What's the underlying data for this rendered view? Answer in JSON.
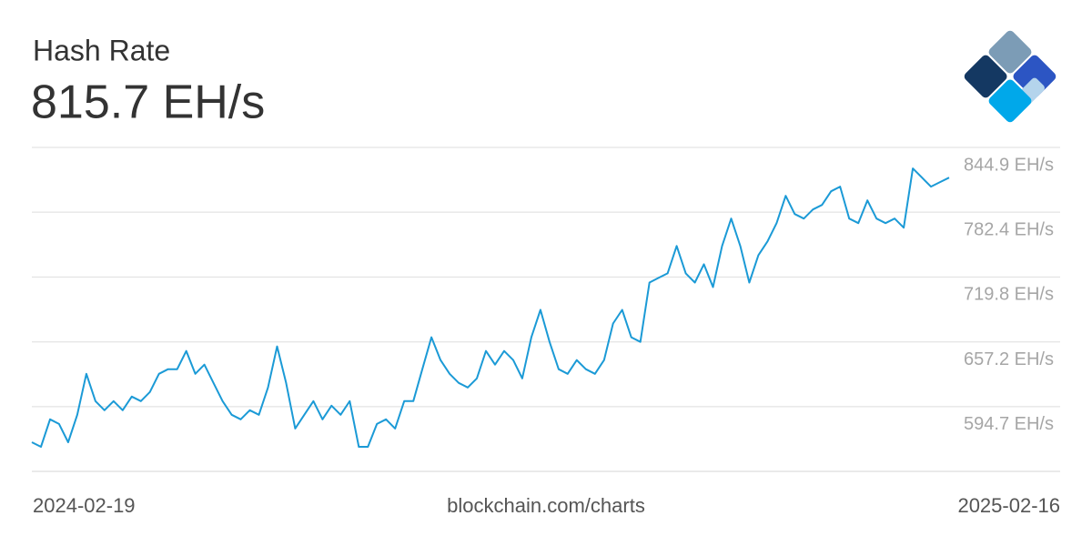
{
  "chart_data": {
    "type": "line",
    "title": "Hash Rate",
    "subtitle": "815.7 EH/s",
    "x_labels": [
      "2024-02-19",
      "2025-02-16"
    ],
    "source": "blockchain.com/charts",
    "color": "#1b9ad6",
    "grid": true,
    "ylim": [
      532.2,
      844.9
    ],
    "yticks": [
      {
        "value": 594.7,
        "label": "594.7 EH/s"
      },
      {
        "value": 657.2,
        "label": "657.2 EH/s"
      },
      {
        "value": 719.8,
        "label": "719.8 EH/s"
      },
      {
        "value": 782.4,
        "label": "782.4 EH/s"
      },
      {
        "value": 844.9,
        "label": "844.9 EH/s"
      }
    ],
    "values": [
      560.3,
      555.9,
      582.4,
      578.0,
      560.3,
      586.8,
      626.4,
      600.0,
      591.2,
      600.0,
      591.2,
      604.4,
      600.0,
      608.8,
      626.4,
      630.8,
      630.8,
      648.4,
      626.4,
      635.2,
      617.6,
      600.0,
      586.8,
      582.4,
      591.2,
      586.8,
      613.2,
      652.8,
      617.6,
      573.6,
      586.8,
      600.0,
      582.4,
      595.6,
      586.8,
      600.0,
      555.9,
      555.9,
      578.0,
      582.4,
      573.6,
      600.0,
      600.0,
      630.8,
      661.7,
      639.6,
      626.4,
      617.6,
      613.2,
      622.0,
      648.4,
      635.2,
      648.4,
      639.6,
      622.0,
      661.7,
      688.1,
      657.2,
      630.8,
      626.4,
      639.6,
      630.8,
      626.4,
      639.6,
      674.9,
      688.1,
      661.7,
      657.2,
      714.5,
      718.9,
      723.3,
      749.8,
      723.3,
      714.5,
      732.1,
      710.1,
      749.8,
      776.2,
      749.8,
      714.5,
      740.9,
      754.2,
      771.8,
      798.2,
      780.6,
      776.2,
      785.0,
      789.4,
      802.6,
      807.0,
      776.2,
      771.8,
      793.8,
      776.2,
      771.8,
      776.2,
      767.4,
      824.6,
      815.8,
      807.0,
      811.4,
      815.7
    ]
  }
}
